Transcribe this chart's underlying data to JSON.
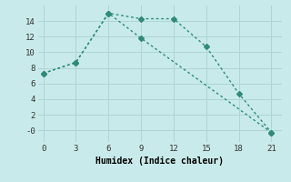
{
  "line1_x": [
    0,
    3,
    6,
    9,
    12,
    15,
    18,
    21
  ],
  "line1_y": [
    7.3,
    8.7,
    15.0,
    14.3,
    14.3,
    10.7,
    4.7,
    -0.3
  ],
  "line2_x": [
    0,
    3,
    6,
    9,
    21
  ],
  "line2_y": [
    7.3,
    8.7,
    15.0,
    11.8,
    -0.3
  ],
  "color": "#2e8b7a",
  "bg_color": "#c8eaea",
  "grid_color": "#afd4d4",
  "xlabel": "Humidex (Indice chaleur)",
  "xlim": [
    -0.5,
    22
  ],
  "ylim": [
    -1.5,
    16
  ],
  "xticks": [
    0,
    3,
    6,
    9,
    12,
    15,
    18,
    21
  ],
  "yticks": [
    0,
    2,
    4,
    6,
    8,
    10,
    12,
    14
  ],
  "ytick_labels": [
    "-0",
    "2",
    "4",
    "6",
    "8",
    "10",
    "12",
    "14"
  ],
  "marker": "D",
  "markersize": 3,
  "linewidth": 1.0
}
